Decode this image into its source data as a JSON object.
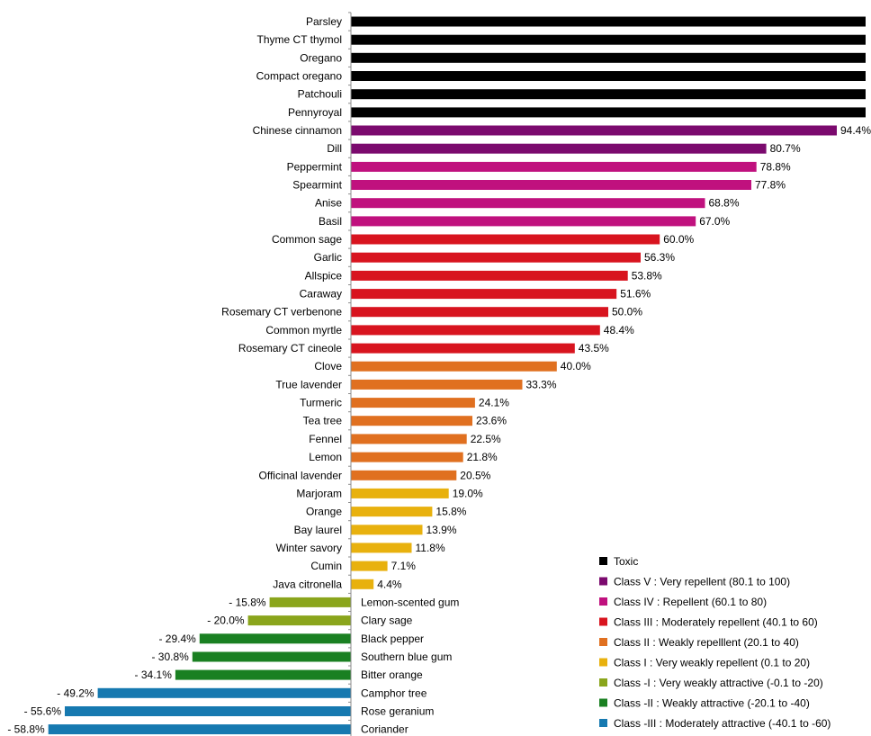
{
  "chart_data": {
    "type": "bar",
    "orientation": "horizontal",
    "xlim": [
      -60,
      100
    ],
    "grid": false,
    "legend_position": "bottom-right",
    "categories": [
      "Parsley",
      "Thyme CT thymol",
      "Oregano",
      "Compact oregano",
      "Patchouli",
      "Pennyroyal",
      "Chinese cinnamon",
      "Dill",
      "Peppermint",
      "Spearmint",
      "Anise",
      "Basil",
      "Common sage",
      "Garlic",
      "Allspice",
      "Caraway",
      "Rosemary CT verbenone",
      "Common myrtle",
      "Rosemary CT cineole",
      "Clove",
      "True lavender",
      "Turmeric",
      "Tea tree",
      "Fennel",
      "Lemon",
      "Officinal lavender",
      "Marjoram",
      "Orange",
      "Bay laurel",
      "Winter savory",
      "Cumin",
      "Java citronella",
      "Lemon-scented gum",
      "Clary sage",
      "Black pepper",
      "Southern blue gum",
      "Bitter orange",
      "Camphor tree",
      "Rose geranium",
      "Coriander"
    ],
    "values": [
      100,
      100,
      100,
      100,
      100,
      100,
      94.4,
      80.7,
      78.8,
      77.8,
      68.8,
      67.0,
      60.0,
      56.3,
      53.8,
      51.6,
      50.0,
      48.4,
      43.5,
      40.0,
      33.3,
      24.1,
      23.6,
      22.5,
      21.8,
      20.5,
      19.0,
      15.8,
      13.9,
      11.8,
      7.1,
      4.4,
      -15.8,
      -20.0,
      -29.4,
      -30.8,
      -34.1,
      -49.2,
      -55.6,
      -58.8
    ],
    "value_labels": [
      "",
      "",
      "",
      "",
      "",
      "",
      "94.4%",
      "80.7%",
      "78.8%",
      "77.8%",
      "68.8%",
      "67.0%",
      "60.0%",
      "56.3%",
      "53.8%",
      "51.6%",
      "50.0%",
      "48.4%",
      "43.5%",
      "40.0%",
      "33.3%",
      "24.1%",
      "23.6%",
      "22.5%",
      "21.8%",
      "20.5%",
      "19.0%",
      "15.8%",
      "13.9%",
      "11.8%",
      "7.1%",
      "4.4%",
      "- 15.8%",
      "- 20.0%",
      "- 29.4%",
      "- 30.8%",
      "- 34.1%",
      "- 49.2%",
      "- 55.6%",
      "- 58.8%"
    ],
    "classes": [
      "toxic",
      "toxic",
      "toxic",
      "toxic",
      "toxic",
      "toxic",
      "v",
      "v",
      "iv",
      "iv",
      "iv",
      "iv",
      "iii",
      "iii",
      "iii",
      "iii",
      "iii",
      "iii",
      "iii",
      "ii",
      "ii",
      "ii",
      "ii",
      "ii",
      "ii",
      "ii",
      "i",
      "i",
      "i",
      "i",
      "i",
      "i",
      "m1",
      "m1",
      "m2",
      "m2",
      "m2",
      "m3",
      "m3",
      "m3"
    ],
    "legend": [
      {
        "key": "toxic",
        "label": "Toxic",
        "color": "#000000"
      },
      {
        "key": "v",
        "label": "Class V : Very repellent (80.1 to 100)",
        "color": "#7b0a6e"
      },
      {
        "key": "iv",
        "label": "Class IV : Repellent (60.1 to 80)",
        "color": "#c0117e"
      },
      {
        "key": "iii",
        "label": "Class III : Moderately repellent (40.1 to 60)",
        "color": "#d8141f"
      },
      {
        "key": "ii",
        "label": "Class II : Weakly repelllent (20.1 to 40)",
        "color": "#e07020"
      },
      {
        "key": "i",
        "label": "Class I : Very weakly repellent (0.1 to 20)",
        "color": "#e8b10e"
      },
      {
        "key": "m1",
        "label": "Class -I : Very weakly attractive (-0.1 to -20)",
        "color": "#8aa51c"
      },
      {
        "key": "m2",
        "label": "Class -II : Weakly attractive (-20.1 to -40)",
        "color": "#1a8022"
      },
      {
        "key": "m3",
        "label": "Class -III : Moderately attractive (-40.1 to -60)",
        "color": "#1679b0"
      }
    ]
  }
}
